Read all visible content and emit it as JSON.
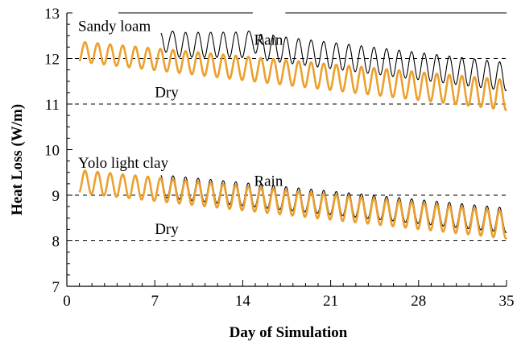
{
  "chart_data": {
    "type": "line",
    "title": "",
    "xlabel": "Day of Simulation",
    "ylabel": "Heat Loss (W/m)",
    "xlim": [
      0,
      35
    ],
    "ylim": [
      7,
      13
    ],
    "xticks": [
      "0",
      "7",
      "14",
      "21",
      "28",
      "35"
    ],
    "yticks": [
      "7",
      "8",
      "9",
      "10",
      "11",
      "12",
      "13"
    ],
    "grid": "dashed horizontal lines at y = 8, 9, 11, 12, 13",
    "annotations": [
      {
        "text": "Sandy loam",
        "x": 0.9,
        "y": 12.6
      },
      {
        "text": "Rain",
        "x": 14.9,
        "y": 12.3
      },
      {
        "text": "Dry",
        "x": 7.0,
        "y": 11.15
      },
      {
        "text": "Yolo light clay",
        "x": 0.9,
        "y": 9.6
      },
      {
        "text": "Rain",
        "x": 14.9,
        "y": 9.2
      },
      {
        "text": "Dry",
        "x": 7.0,
        "y": 8.15
      }
    ],
    "series": [
      {
        "name": "",
        "soil": "Sandy loam",
        "condition": "Rain",
        "color": "#000000",
        "start_day": 7.5,
        "end_day": 35,
        "daily_mean": [
          [
            7.5,
            12.3
          ],
          [
            14,
            12.3
          ],
          [
            35,
            11.6
          ]
        ],
        "daily_amplitude": [
          [
            7.5,
            0.27
          ],
          [
            35,
            0.31
          ]
        ],
        "note": "Black thin curve; extra rainfall bumps near day 8 and day 14.8"
      },
      {
        "name": "",
        "soil": "Sandy loam",
        "condition": "Dry",
        "color": "#ECA02E",
        "start_day": 1,
        "end_day": 35,
        "daily_mean": [
          [
            1,
            12.15
          ],
          [
            35,
            11.2
          ]
        ],
        "daily_amplitude": [
          [
            1,
            0.22
          ],
          [
            35,
            0.33
          ]
        ]
      },
      {
        "name": "",
        "soil": "Yolo light clay",
        "condition": "Rain",
        "color": "#000000",
        "start_day": 7.5,
        "end_day": 35,
        "daily_mean": [
          [
            7.5,
            9.2
          ],
          [
            35,
            8.45
          ]
        ],
        "daily_amplitude": [
          [
            7.5,
            0.25
          ],
          [
            35,
            0.27
          ]
        ]
      },
      {
        "name": "",
        "soil": "Yolo light clay",
        "condition": "Dry",
        "color": "#ECA02E",
        "start_day": 1,
        "end_day": 35,
        "daily_mean": [
          [
            1,
            9.3
          ],
          [
            35,
            8.35
          ]
        ],
        "daily_amplitude": [
          [
            1,
            0.25
          ],
          [
            35,
            0.3
          ]
        ]
      }
    ]
  }
}
